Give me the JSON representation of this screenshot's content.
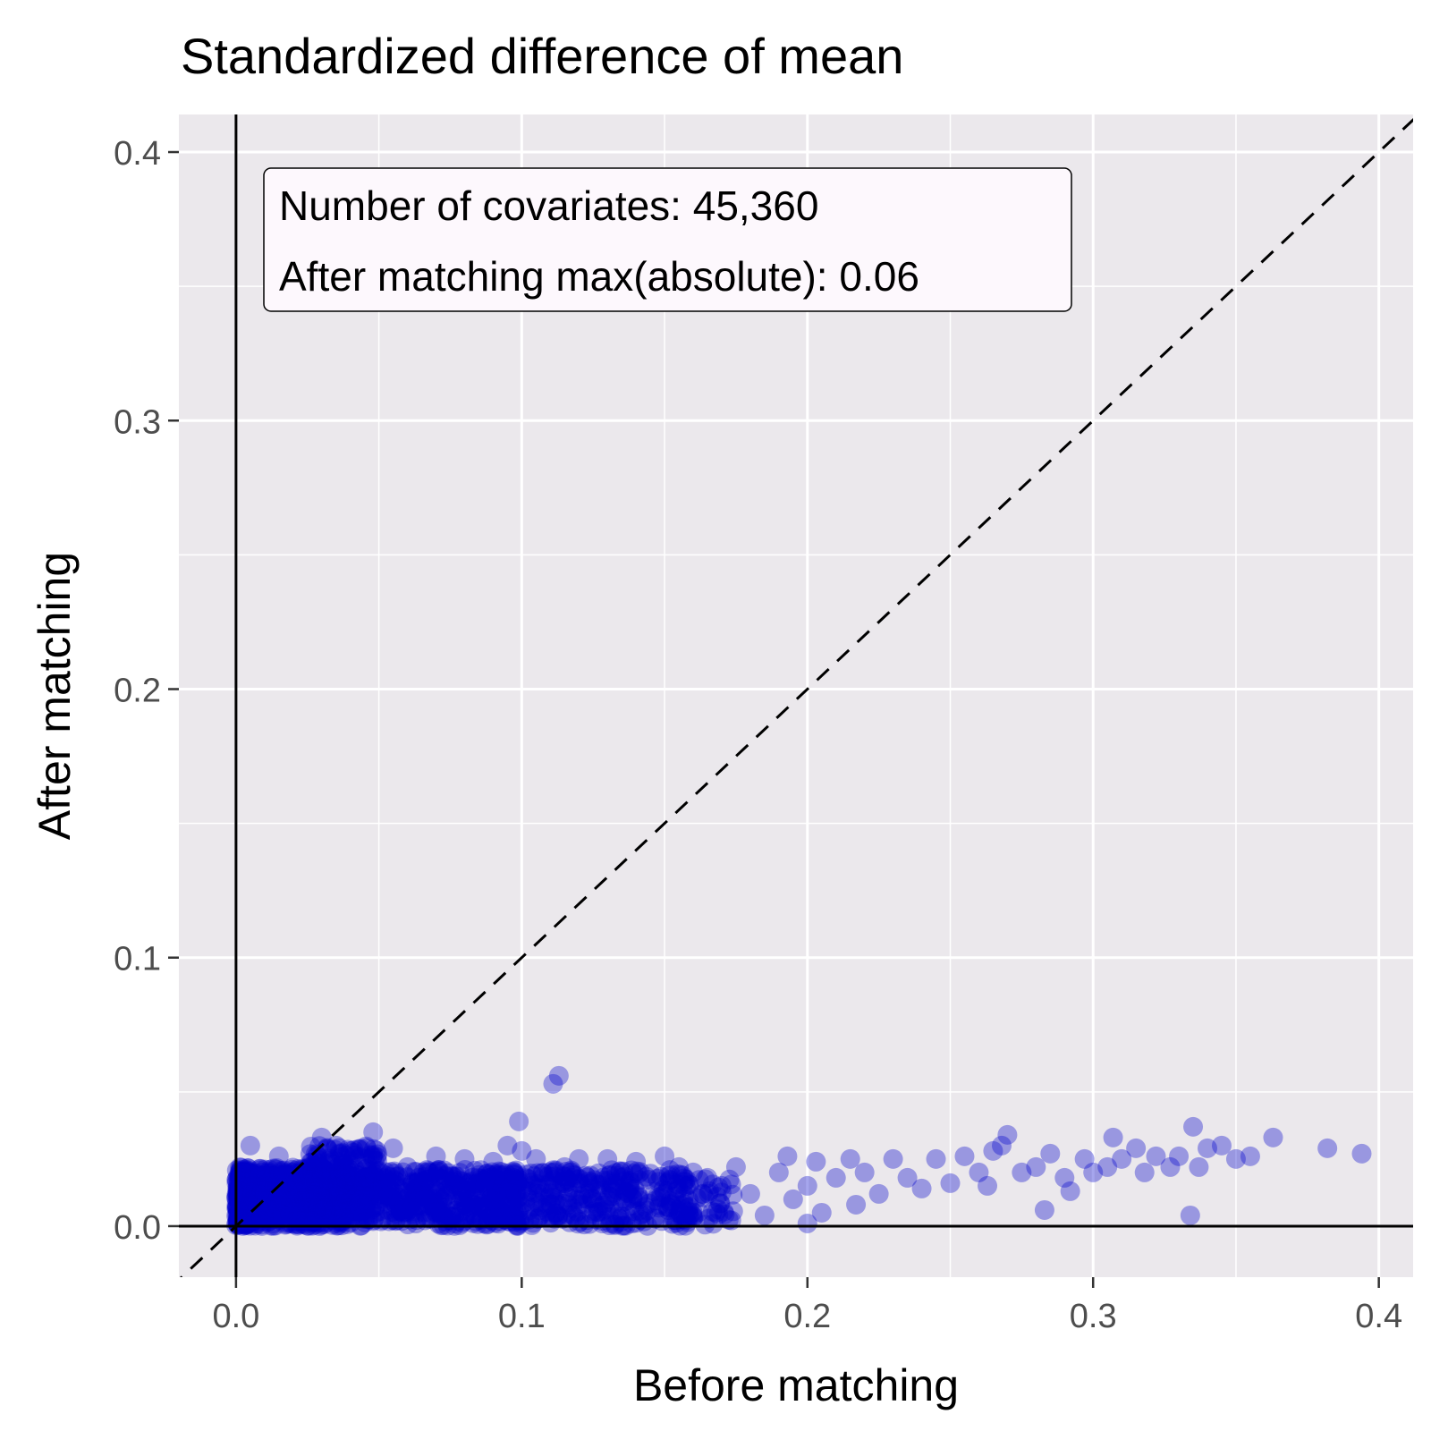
{
  "chart_data": {
    "type": "scatter",
    "title": "Standardized difference of mean",
    "xlabel": "Before matching",
    "ylabel": "After matching",
    "xlim": [
      -0.02,
      0.412
    ],
    "ylim": [
      -0.019,
      0.414
    ],
    "x_ticks": [
      "0.0",
      "0.1",
      "0.2",
      "0.3",
      "0.4"
    ],
    "y_ticks": [
      "0.0",
      "0.1",
      "0.2",
      "0.3",
      "0.4"
    ],
    "grid": true,
    "reference_line": "y = x (dashed)",
    "annotation": [
      "Number of covariates: 45,360",
      "After matching max(absolute): 0.06"
    ],
    "colors": {
      "panel": "#ebe8ec",
      "grid": "#ffffff",
      "point": "#0000cc"
    },
    "points": [
      [
        0.005,
        0.03
      ],
      [
        0.015,
        0.026
      ],
      [
        0.02,
        0.02
      ],
      [
        0.03,
        0.033
      ],
      [
        0.035,
        0.03
      ],
      [
        0.04,
        0.028
      ],
      [
        0.045,
        0.025
      ],
      [
        0.048,
        0.035
      ],
      [
        0.055,
        0.029
      ],
      [
        0.06,
        0.022
      ],
      [
        0.07,
        0.026
      ],
      [
        0.08,
        0.025
      ],
      [
        0.09,
        0.024
      ],
      [
        0.095,
        0.03
      ],
      [
        0.099,
        0.039
      ],
      [
        0.1,
        0.028
      ],
      [
        0.105,
        0.025
      ],
      [
        0.111,
        0.053
      ],
      [
        0.113,
        0.056
      ],
      [
        0.115,
        0.022
      ],
      [
        0.12,
        0.025
      ],
      [
        0.13,
        0.025
      ],
      [
        0.14,
        0.024
      ],
      [
        0.15,
        0.026
      ],
      [
        0.155,
        0.022
      ],
      [
        0.16,
        0.02
      ],
      [
        0.165,
        0.018
      ],
      [
        0.168,
        0.005
      ],
      [
        0.17,
        0.015
      ],
      [
        0.175,
        0.022
      ],
      [
        0.18,
        0.012
      ],
      [
        0.185,
        0.004
      ],
      [
        0.19,
        0.02
      ],
      [
        0.193,
        0.026
      ],
      [
        0.195,
        0.01
      ],
      [
        0.2,
        0.015
      ],
      [
        0.2,
        0.001
      ],
      [
        0.203,
        0.024
      ],
      [
        0.205,
        0.005
      ],
      [
        0.21,
        0.018
      ],
      [
        0.215,
        0.025
      ],
      [
        0.217,
        0.008
      ],
      [
        0.22,
        0.02
      ],
      [
        0.225,
        0.012
      ],
      [
        0.23,
        0.025
      ],
      [
        0.235,
        0.018
      ],
      [
        0.24,
        0.014
      ],
      [
        0.245,
        0.025
      ],
      [
        0.25,
        0.016
      ],
      [
        0.255,
        0.026
      ],
      [
        0.26,
        0.02
      ],
      [
        0.263,
        0.015
      ],
      [
        0.265,
        0.028
      ],
      [
        0.268,
        0.03
      ],
      [
        0.27,
        0.034
      ],
      [
        0.275,
        0.02
      ],
      [
        0.28,
        0.022
      ],
      [
        0.283,
        0.006
      ],
      [
        0.285,
        0.027
      ],
      [
        0.29,
        0.018
      ],
      [
        0.292,
        0.013
      ],
      [
        0.297,
        0.025
      ],
      [
        0.3,
        0.02
      ],
      [
        0.305,
        0.022
      ],
      [
        0.307,
        0.033
      ],
      [
        0.31,
        0.025
      ],
      [
        0.315,
        0.029
      ],
      [
        0.318,
        0.02
      ],
      [
        0.322,
        0.026
      ],
      [
        0.327,
        0.022
      ],
      [
        0.33,
        0.026
      ],
      [
        0.334,
        0.004
      ],
      [
        0.335,
        0.037
      ],
      [
        0.337,
        0.022
      ],
      [
        0.34,
        0.029
      ],
      [
        0.345,
        0.03
      ],
      [
        0.35,
        0.025
      ],
      [
        0.355,
        0.026
      ],
      [
        0.363,
        0.033
      ],
      [
        0.382,
        0.029
      ],
      [
        0.394,
        0.027
      ]
    ],
    "dense_regions": [
      {
        "x": [
          0.0,
          0.04
        ],
        "y": [
          0.0,
          0.022
        ],
        "count": 600
      },
      {
        "x": [
          0.0,
          0.005
        ],
        "y": [
          0.0,
          0.022
        ],
        "count": 160
      },
      {
        "x": [
          0.025,
          0.05
        ],
        "y": [
          0.005,
          0.03
        ],
        "count": 160
      },
      {
        "x": [
          0.04,
          0.1
        ],
        "y": [
          0.0,
          0.021
        ],
        "count": 450
      },
      {
        "x": [
          0.1,
          0.16
        ],
        "y": [
          0.0,
          0.021
        ],
        "count": 280
      },
      {
        "x": [
          0.15,
          0.175
        ],
        "y": [
          0.0,
          0.018
        ],
        "count": 50
      }
    ]
  }
}
